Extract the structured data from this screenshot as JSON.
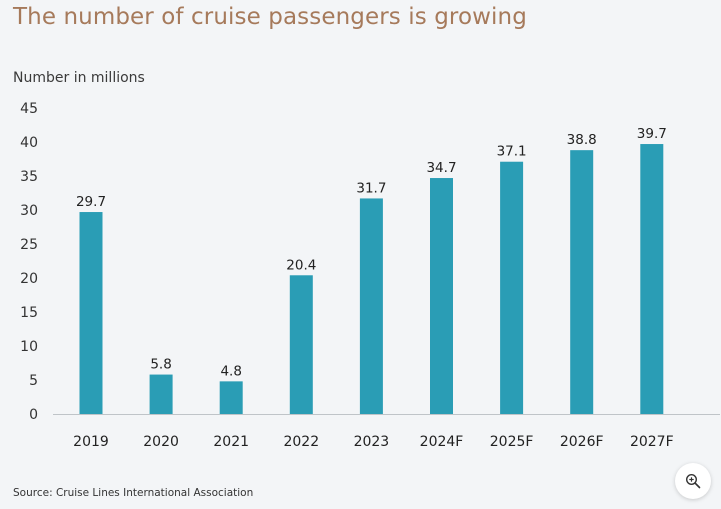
{
  "colors": {
    "bar": "#2a9db5",
    "title": "#a67a5b",
    "background": "#f3f5f7",
    "axis_text": "#333333"
  },
  "chart_data": {
    "type": "bar",
    "title": "The number of cruise passengers is growing",
    "ylabel": "Number in millions",
    "xlabel": "",
    "categories": [
      "2019",
      "2020",
      "2021",
      "2022",
      "2023",
      "2024F",
      "2025F",
      "2026F",
      "2027F"
    ],
    "values": [
      29.7,
      5.8,
      4.8,
      20.4,
      31.7,
      34.7,
      37.1,
      38.8,
      39.7
    ],
    "data_labels": [
      "29.7",
      "5.8",
      "4.8",
      "20.4",
      "31.7",
      "34.7",
      "37.1",
      "38.8",
      "39.7"
    ],
    "ylim": [
      0,
      45
    ],
    "yticks": [
      0,
      5,
      10,
      15,
      20,
      25,
      30,
      35,
      40,
      45
    ],
    "grid": false,
    "legend": "none"
  },
  "footer": {
    "source": "Source: Cruise Lines International Association"
  },
  "controls": {
    "zoom_icon": "zoom-in-icon"
  }
}
